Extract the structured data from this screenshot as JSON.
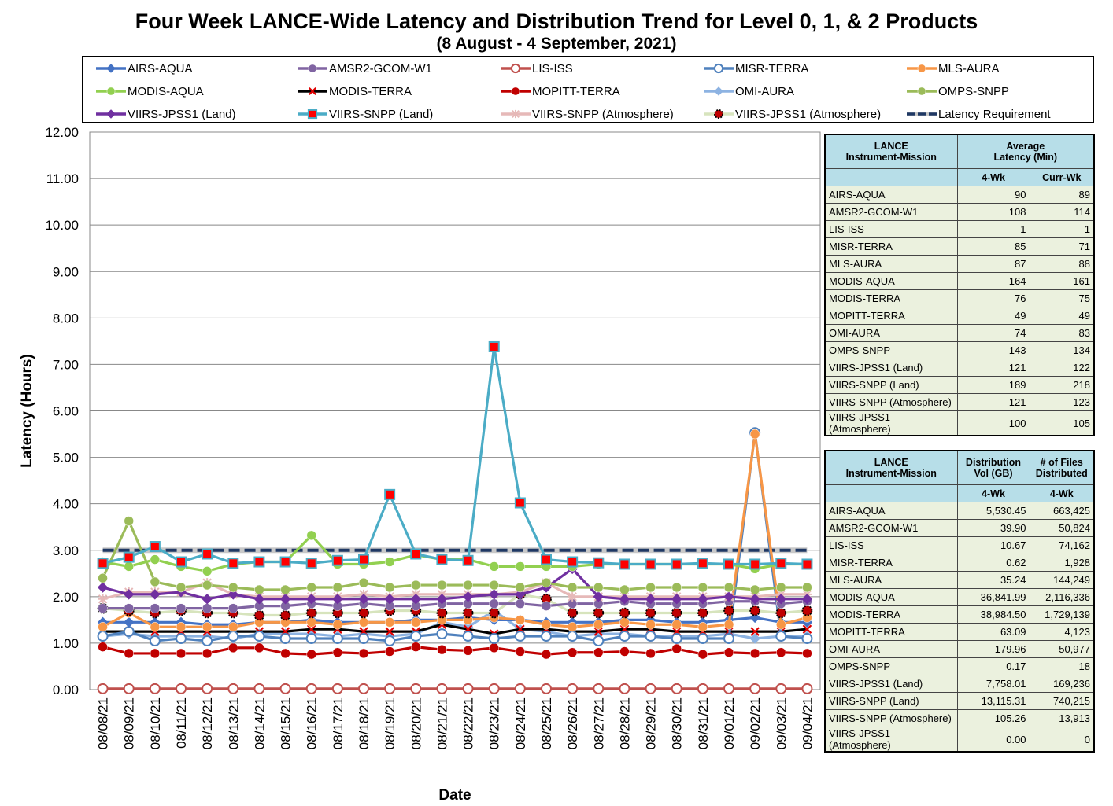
{
  "title": "Four Week LANCE-Wide Latency and Distribution Trend for Level 0, 1, & 2 Products",
  "subtitle": "(8  August   - 4  September,  2021)",
  "chart_data": {
    "type": "line",
    "xlabel": "Date",
    "ylabel": "Latency (Hours)",
    "ylim": [
      0,
      12
    ],
    "yticks": [
      "0.00",
      "1.00",
      "2.00",
      "3.00",
      "4.00",
      "5.00",
      "6.00",
      "7.00",
      "8.00",
      "9.00",
      "10.00",
      "11.00",
      "12.00"
    ],
    "categories": [
      "08/08/21",
      "08/09/21",
      "08/10/21",
      "08/11/21",
      "08/12/21",
      "08/13/21",
      "08/14/21",
      "08/15/21",
      "08/16/21",
      "08/17/21",
      "08/18/21",
      "08/19/21",
      "08/20/21",
      "08/21/21",
      "08/22/21",
      "08/23/21",
      "08/24/21",
      "08/25/21",
      "08/26/21",
      "08/27/21",
      "08/28/21",
      "08/29/21",
      "08/30/21",
      "08/31/21",
      "09/01/21",
      "09/02/21",
      "09/03/21",
      "09/04/21"
    ],
    "grid": "horizontal",
    "legend_position": "top",
    "series": [
      {
        "name": "AIRS-AQUA",
        "color": "#4472c4",
        "marker": "diamond",
        "values": [
          1.45,
          1.45,
          1.45,
          1.45,
          1.4,
          1.4,
          1.45,
          1.45,
          1.5,
          1.45,
          1.45,
          1.45,
          1.5,
          1.5,
          1.55,
          1.5,
          1.5,
          1.45,
          1.45,
          1.45,
          1.5,
          1.5,
          1.45,
          1.45,
          1.5,
          1.55,
          1.45,
          1.45
        ]
      },
      {
        "name": "AMSR2-GCOM-W1",
        "color": "#8064a2",
        "marker": "circle",
        "values": [
          1.75,
          1.75,
          1.75,
          1.75,
          1.75,
          1.75,
          1.8,
          1.8,
          1.85,
          1.8,
          1.85,
          1.8,
          1.8,
          1.85,
          1.85,
          1.85,
          1.85,
          1.8,
          1.85,
          1.85,
          1.9,
          1.85,
          1.85,
          1.85,
          1.9,
          1.9,
          1.85,
          1.9
        ]
      },
      {
        "name": "LIS-ISS",
        "color": "#c0504d",
        "marker": "open-circle",
        "values": [
          0.02,
          0.02,
          0.02,
          0.02,
          0.02,
          0.02,
          0.02,
          0.02,
          0.02,
          0.02,
          0.02,
          0.02,
          0.02,
          0.02,
          0.02,
          0.02,
          0.02,
          0.02,
          0.02,
          0.02,
          0.02,
          0.02,
          0.02,
          0.02,
          0.02,
          0.02,
          0.02,
          0.02
        ]
      },
      {
        "name": "MISR-TERRA",
        "color": "#4f81bd",
        "marker": "open-circle",
        "values": [
          1.15,
          1.25,
          1.05,
          1.1,
          1.05,
          1.15,
          1.15,
          1.1,
          1.1,
          1.1,
          1.1,
          1.05,
          1.15,
          1.2,
          1.15,
          1.1,
          1.15,
          1.15,
          1.15,
          1.05,
          1.15,
          1.15,
          1.1,
          1.1,
          1.1,
          5.53,
          1.15,
          1.1
        ]
      },
      {
        "name": "MLS-AURA",
        "color": "#f79646",
        "marker": "circle",
        "values": [
          1.35,
          1.65,
          1.35,
          1.35,
          1.35,
          1.35,
          1.45,
          1.45,
          1.45,
          1.4,
          1.45,
          1.45,
          1.45,
          1.5,
          1.5,
          1.55,
          1.5,
          1.4,
          1.35,
          1.4,
          1.45,
          1.4,
          1.4,
          1.35,
          1.4,
          5.5,
          1.4,
          1.55
        ]
      },
      {
        "name": "MODIS-AQUA",
        "color": "#92d050",
        "marker": "circle",
        "values": [
          2.75,
          2.65,
          2.8,
          2.65,
          2.55,
          2.7,
          2.75,
          2.75,
          3.32,
          2.7,
          2.7,
          2.75,
          2.9,
          2.8,
          2.8,
          2.65,
          2.65,
          2.65,
          2.65,
          2.7,
          2.7,
          2.7,
          2.7,
          2.7,
          2.7,
          2.6,
          2.7,
          2.7
        ]
      },
      {
        "name": "MODIS-TERRA",
        "color": "#000000",
        "marker": "x",
        "values": [
          1.25,
          1.25,
          1.25,
          1.25,
          1.25,
          1.25,
          1.25,
          1.25,
          1.3,
          1.3,
          1.25,
          1.25,
          1.25,
          1.4,
          1.3,
          1.2,
          1.3,
          1.3,
          1.25,
          1.25,
          1.3,
          1.3,
          1.25,
          1.25,
          1.25,
          1.25,
          1.25,
          1.3
        ]
      },
      {
        "name": "MOPITT-TERRA",
        "color": "#c00000",
        "marker": "circle",
        "values": [
          0.92,
          0.78,
          0.78,
          0.78,
          0.78,
          0.9,
          0.9,
          0.78,
          0.76,
          0.8,
          0.78,
          0.82,
          0.92,
          0.86,
          0.84,
          0.9,
          0.82,
          0.76,
          0.8,
          0.8,
          0.82,
          0.78,
          0.88,
          0.76,
          0.8,
          0.78,
          0.8,
          0.78
        ]
      },
      {
        "name": "OMI-AURA",
        "color": "#8db3e2",
        "marker": "diamond",
        "values": [
          1.15,
          1.2,
          1.15,
          1.15,
          1.15,
          1.1,
          1.2,
          1.2,
          1.2,
          1.15,
          1.2,
          1.15,
          1.2,
          1.45,
          1.35,
          1.7,
          1.3,
          1.25,
          1.15,
          1.2,
          1.2,
          1.15,
          1.15,
          1.15,
          1.2,
          1.1,
          1.15,
          1.15
        ]
      },
      {
        "name": "OMPS-SNPP",
        "color": "#9bbb59",
        "marker": "circle",
        "values": [
          2.4,
          3.63,
          2.32,
          2.2,
          2.25,
          2.2,
          2.15,
          2.15,
          2.2,
          2.2,
          2.3,
          2.2,
          2.25,
          2.25,
          2.25,
          2.25,
          2.2,
          2.3,
          2.2,
          2.2,
          2.15,
          2.2,
          2.2,
          2.2,
          2.2,
          2.15,
          2.2,
          2.2
        ]
      },
      {
        "name": "VIIRS-JPSS1 (Land)",
        "color": "#7030a0",
        "marker": "diamond",
        "values": [
          2.2,
          2.05,
          2.05,
          2.1,
          1.95,
          2.05,
          1.95,
          1.95,
          1.95,
          1.95,
          1.95,
          1.95,
          1.95,
          1.95,
          2.0,
          2.05,
          2.05,
          2.2,
          2.6,
          2.0,
          1.95,
          1.95,
          1.95,
          1.95,
          2.0,
          1.95,
          1.95,
          1.95
        ]
      },
      {
        "name": "VIIRS-SNPP (Land)",
        "color": "#4bacc6",
        "marker": "square",
        "values": [
          2.72,
          2.85,
          3.08,
          2.75,
          2.92,
          2.72,
          2.75,
          2.75,
          2.72,
          2.78,
          2.8,
          4.2,
          2.92,
          2.8,
          2.78,
          7.38,
          4.02,
          2.8,
          2.75,
          2.73,
          2.7,
          2.7,
          2.7,
          2.72,
          2.7,
          2.7,
          2.72,
          2.7
        ]
      },
      {
        "name": "VIIRS-SNPP (Atmosphere)",
        "color": "#e6b9b8",
        "marker": "star",
        "values": [
          1.95,
          2.1,
          2.1,
          2.1,
          2.3,
          2.05,
          2.0,
          2.0,
          2.0,
          2.0,
          2.05,
          2.0,
          2.05,
          2.05,
          2.05,
          2.05,
          2.1,
          2.3,
          2.0,
          2.0,
          2.0,
          2.0,
          2.0,
          2.0,
          2.0,
          2.0,
          2.05,
          2.05
        ]
      },
      {
        "name": "VIIRS-JPSS1 (Atmosphere)",
        "color": "#d7e4bd",
        "marker": "dot-circle",
        "values": [
          1.75,
          1.7,
          1.65,
          1.7,
          1.65,
          1.65,
          1.6,
          1.6,
          1.65,
          1.65,
          1.65,
          1.7,
          1.7,
          1.65,
          1.65,
          1.65,
          2.05,
          1.95,
          1.65,
          1.65,
          1.65,
          1.65,
          1.65,
          1.65,
          1.7,
          1.7,
          1.65,
          1.7
        ]
      },
      {
        "name": "Latency Requirement",
        "color": "#1f3864",
        "marker": "dash",
        "values": [
          3,
          3,
          3,
          3,
          3,
          3,
          3,
          3,
          3,
          3,
          3,
          3,
          3,
          3,
          3,
          3,
          3,
          3,
          3,
          3,
          3,
          3,
          3,
          3,
          3,
          3,
          3,
          3
        ]
      }
    ]
  },
  "latency_table": {
    "col_mission": "LANCE\nInstrument-Mission",
    "col_avg": "Average\nLatency (Min)",
    "col_4wk": "4-Wk",
    "col_curr": "Curr-Wk",
    "rows": [
      {
        "name": "AIRS-AQUA",
        "wk4": "90",
        "curr": "89"
      },
      {
        "name": "AMSR2-GCOM-W1",
        "wk4": "108",
        "curr": "114"
      },
      {
        "name": "LIS-ISS",
        "wk4": "1",
        "curr": "1"
      },
      {
        "name": "MISR-TERRA",
        "wk4": "85",
        "curr": "71"
      },
      {
        "name": "MLS-AURA",
        "wk4": "87",
        "curr": "88"
      },
      {
        "name": "MODIS-AQUA",
        "wk4": "164",
        "curr": "161"
      },
      {
        "name": "MODIS-TERRA",
        "wk4": "76",
        "curr": "75"
      },
      {
        "name": "MOPITT-TERRA",
        "wk4": "49",
        "curr": "49"
      },
      {
        "name": "OMI-AURA",
        "wk4": "74",
        "curr": "83"
      },
      {
        "name": "OMPS-SNPP",
        "wk4": "143",
        "curr": "134"
      },
      {
        "name": "VIIRS-JPSS1 (Land)",
        "wk4": "121",
        "curr": "122"
      },
      {
        "name": "VIIRS-SNPP (Land)",
        "wk4": "189",
        "curr": "218"
      },
      {
        "name": "VIIRS-SNPP (Atmosphere)",
        "wk4": "121",
        "curr": "123"
      },
      {
        "name": "VIIRS-JPSS1 (Atmosphere)",
        "wk4": "100",
        "curr": "105"
      }
    ]
  },
  "distribution_table": {
    "col_mission": "LANCE\nInstrument-Mission",
    "col_vol": "Distribution\nVol (GB)",
    "col_files": "# of Files\nDistributed",
    "col_4wk_a": "4-Wk",
    "col_4wk_b": "4-Wk",
    "rows": [
      {
        "name": "AIRS-AQUA",
        "vol": "5,530.45",
        "files": "663,425"
      },
      {
        "name": "AMSR2-GCOM-W1",
        "vol": "39.90",
        "files": "50,824"
      },
      {
        "name": "LIS-ISS",
        "vol": "10.67",
        "files": "74,162"
      },
      {
        "name": "MISR-TERRA",
        "vol": "0.62",
        "files": "1,928"
      },
      {
        "name": "MLS-AURA",
        "vol": "35.24",
        "files": "144,249"
      },
      {
        "name": "MODIS-AQUA",
        "vol": "36,841.99",
        "files": "2,116,336"
      },
      {
        "name": "MODIS-TERRA",
        "vol": "38,984.50",
        "files": "1,729,139"
      },
      {
        "name": "MOPITT-TERRA",
        "vol": "63.09",
        "files": "4,123"
      },
      {
        "name": "OMI-AURA",
        "vol": "179.96",
        "files": "50,977"
      },
      {
        "name": "OMPS-SNPP",
        "vol": "0.17",
        "files": "18"
      },
      {
        "name": "VIIRS-JPSS1 (Land)",
        "vol": "7,758.01",
        "files": "169,236"
      },
      {
        "name": "VIIRS-SNPP (Land)",
        "vol": "13,115.31",
        "files": "740,215"
      },
      {
        "name": "VIIRS-SNPP (Atmosphere)",
        "vol": "105.26",
        "files": "13,913"
      },
      {
        "name": "VIIRS-JPSS1 (Atmosphere)",
        "vol": "0.00",
        "files": "0"
      }
    ]
  }
}
